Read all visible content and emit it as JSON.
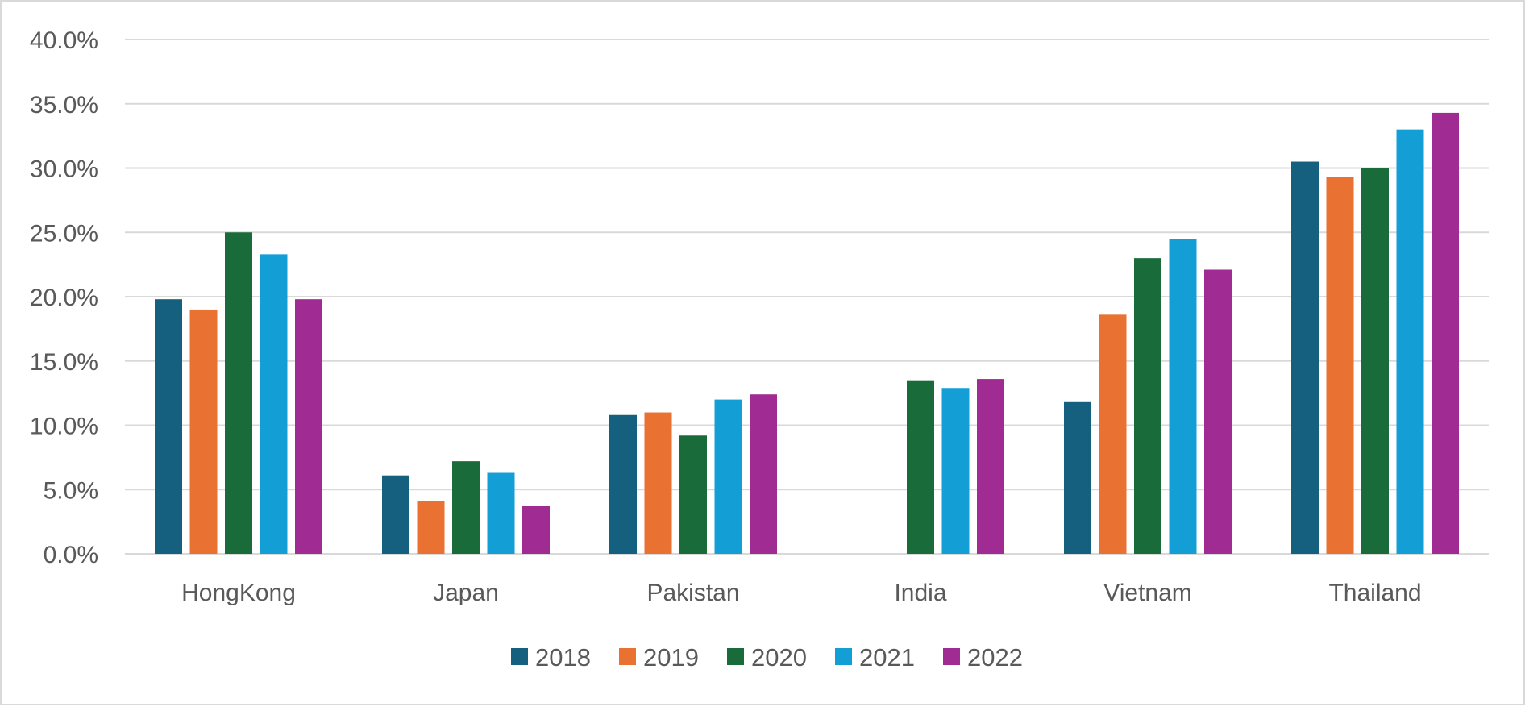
{
  "chart_data": {
    "type": "bar",
    "title": "",
    "xlabel": "",
    "ylabel": "",
    "categories": [
      "HongKong",
      "Japan",
      "Pakistan",
      "India",
      "Vietnam",
      "Thailand"
    ],
    "series": [
      {
        "name": "2018",
        "color": "#15607f",
        "values": [
          0.198,
          0.061,
          0.108,
          null,
          0.118,
          0.305
        ]
      },
      {
        "name": "2019",
        "color": "#e97132",
        "values": [
          0.19,
          0.041,
          0.11,
          null,
          0.186,
          0.293
        ]
      },
      {
        "name": "2020",
        "color": "#196b3a",
        "values": [
          0.25,
          0.072,
          0.092,
          0.135,
          0.23,
          0.3
        ]
      },
      {
        "name": "2021",
        "color": "#139fd6",
        "values": [
          0.233,
          0.063,
          0.12,
          0.129,
          0.245,
          0.33
        ]
      },
      {
        "name": "2022",
        "color": "#a02b93",
        "values": [
          0.198,
          0.037,
          0.124,
          0.136,
          0.221,
          0.343
        ]
      }
    ],
    "ylim": [
      0,
      0.4
    ],
    "yticks": [
      0,
      0.05,
      0.1,
      0.15,
      0.2,
      0.25,
      0.3,
      0.35,
      0.4
    ],
    "ytick_labels": [
      "0.0%",
      "5.0%",
      "10.0%",
      "15.0%",
      "20.0%",
      "25.0%",
      "30.0%",
      "35.0%",
      "40.0%"
    ],
    "grid": true,
    "legend": "bottom-center"
  }
}
